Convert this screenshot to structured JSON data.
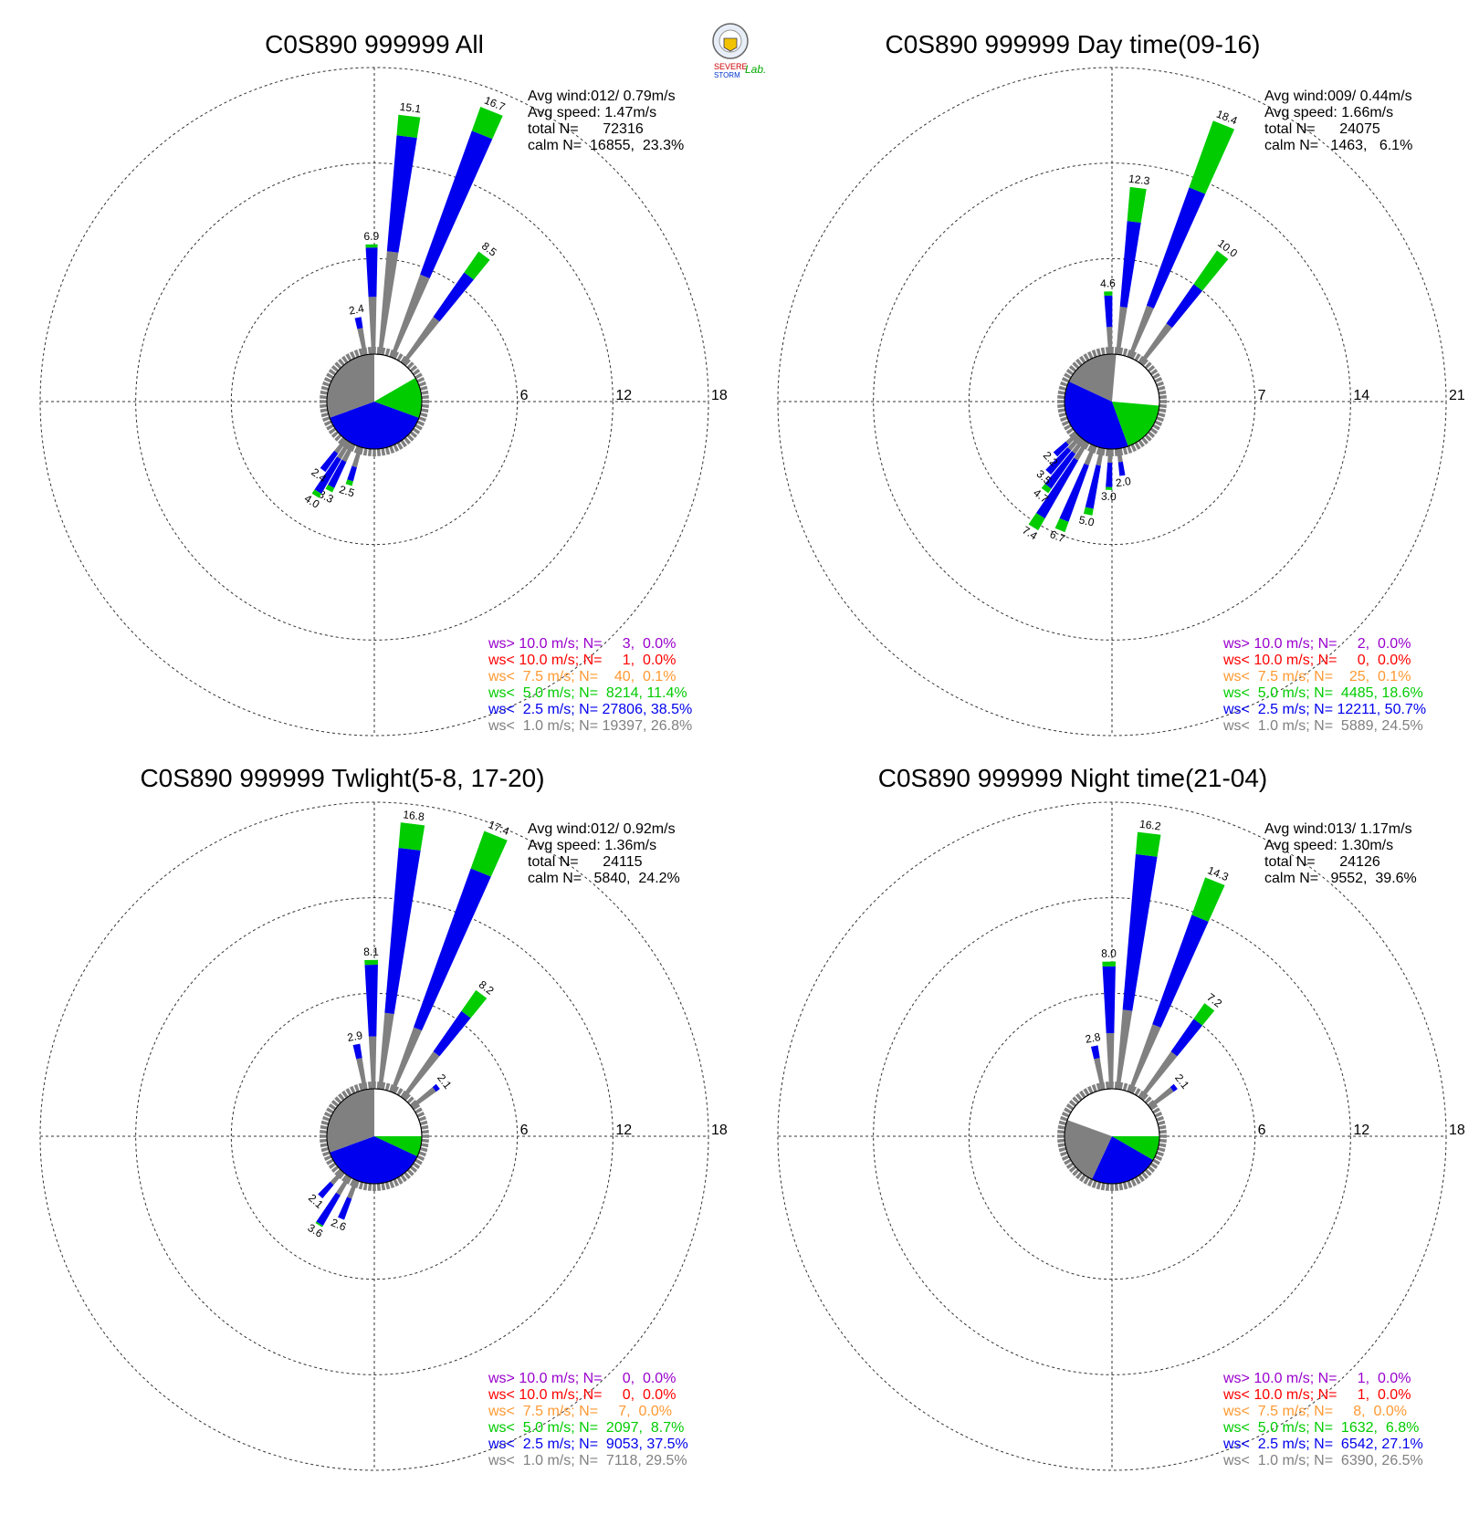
{
  "logo": {
    "text": [
      "SEVERE",
      "STORM",
      "Lab."
    ],
    "colors": [
      "#cc0000",
      "#0033cc",
      "#00aa00"
    ]
  },
  "colors": {
    "gt10": "#9900cc",
    "lt10": "#ff0000",
    "lt7_5": "#ff9933",
    "lt5": "#00cc00",
    "lt2_5": "#0000ee",
    "lt1": "#808080"
  },
  "chart_data": [
    {
      "type": "windrose",
      "title": "C0S890 999999 All",
      "rings": [
        6,
        12,
        18
      ],
      "stats": [
        "Avg wind:012/ 0.79m/s",
        "Avg speed: 1.47m/s",
        "total N=      72316",
        "calm N=  16855,  23.3%"
      ],
      "legend": [
        "ws> 10.0 m/s; N=     3,  0.0%",
        "ws< 10.0 m/s; N=     1,  0.0%",
        "ws<  7.5 m/s; N=    40,  0.1%",
        "ws<  5.0 m/s; N=  8214, 11.4%",
        "ws<  2.5 m/s; N= 27806, 38.5%",
        "ws<  1.0 m/s; N= 19397, 26.8%"
      ],
      "center_pie": [
        {
          "class": "lt2_5",
          "start": 110,
          "end": 250
        },
        {
          "class": "lt5",
          "start": 60,
          "end": 110
        },
        {
          "class": "lt1",
          "start": 250,
          "end": 360
        }
      ],
      "petals": [
        {
          "dir": 7,
          "value": 15.1,
          "green": 1.3,
          "grey": 6.5,
          "label": true
        },
        {
          "dir": 22,
          "value": 16.7,
          "green": 1.6,
          "grey": 5.5,
          "label": true
        },
        {
          "dir": -1,
          "value": 6.9,
          "green": 0.2,
          "grey": 3.6,
          "label": true
        },
        {
          "dir": 37,
          "value": 8.5,
          "green": 1.6,
          "grey": 3.5,
          "label": true
        },
        {
          "dir": -11,
          "value": 2.4,
          "green": 0,
          "grey": 1.7,
          "label": true
        },
        {
          "dir": 197,
          "value": 2.5,
          "green": 0.3,
          "grey": 1.3,
          "label": true
        },
        {
          "dir": 207,
          "value": 3.3,
          "green": 0.3,
          "grey": 1.2,
          "label": true
        },
        {
          "dir": 212,
          "value": 4.0,
          "green": 0.3,
          "grey": 1.2,
          "label": true
        },
        {
          "dir": 217,
          "value": 2.4,
          "green": 0,
          "grey": 1.0,
          "label": true
        }
      ]
    },
    {
      "type": "windrose",
      "title": "C0S890 999999 Day time(09-16)",
      "rings": [
        7,
        14,
        21
      ],
      "stats": [
        "Avg wind:009/ 0.44m/s",
        "Avg speed: 1.66m/s",
        "total N=      24075",
        "calm N=   1463,   6.1%"
      ],
      "legend": [
        "ws> 10.0 m/s; N=     2,  0.0%",
        "ws< 10.0 m/s; N=     0,  0.0%",
        "ws<  7.5 m/s; N=    25,  0.1%",
        "ws<  5.0 m/s; N=  4485, 18.6%",
        "ws<  2.5 m/s; N= 12211, 50.7%",
        "ws<  1.0 m/s; N=  5889, 24.5%"
      ],
      "center_pie": [
        {
          "class": "lt2_5",
          "start": 160,
          "end": 295
        },
        {
          "class": "lt5",
          "start": 95,
          "end": 160
        },
        {
          "class": "lt1",
          "start": 295,
          "end": 365
        }
      ],
      "petals": [
        {
          "dir": 7,
          "value": 12.3,
          "green": 2.5,
          "grey": 3.5,
          "label": true
        },
        {
          "dir": 22,
          "value": 18.4,
          "green": 5.2,
          "grey": 4.0,
          "label": true
        },
        {
          "dir": -2,
          "value": 4.6,
          "green": 0.3,
          "grey": 2.0,
          "label": true
        },
        {
          "dir": 37,
          "value": 10.0,
          "green": 3.0,
          "grey": 3.5,
          "label": true
        },
        {
          "dir": 172,
          "value": 2.0,
          "green": 0,
          "grey": 1.0,
          "label": true
        },
        {
          "dir": 182,
          "value": 3.0,
          "green": 0.2,
          "grey": 1.0,
          "label": true
        },
        {
          "dir": 192,
          "value": 5.0,
          "green": 0.5,
          "grey": 1.3,
          "label": true
        },
        {
          "dir": 202,
          "value": 6.7,
          "green": 0.8,
          "grey": 1.5,
          "label": true
        },
        {
          "dir": 212,
          "value": 7.4,
          "green": 1.0,
          "grey": 1.5,
          "label": true
        },
        {
          "dir": 217,
          "value": 4.7,
          "green": 0.4,
          "grey": 1.2,
          "label": true
        },
        {
          "dir": 222,
          "value": 3.5,
          "green": 0,
          "grey": 1.2,
          "label": true
        },
        {
          "dir": 227,
          "value": 2.2,
          "green": 0,
          "grey": 1.0,
          "label": true
        }
      ]
    },
    {
      "type": "windrose",
      "title": "C0S890 999999 Twlight(5-8, 17-20)",
      "rings": [
        6,
        12,
        18
      ],
      "stats": [
        "Avg wind:012/ 0.92m/s",
        "Avg speed: 1.36m/s",
        "total N=      24115",
        "calm N=   5840,  24.2%"
      ],
      "legend": [
        "ws> 10.0 m/s; N=     0,  0.0%",
        "ws< 10.0 m/s; N=     0,  0.0%",
        "ws<  7.5 m/s; N=     7,  0.0%",
        "ws<  5.0 m/s; N=  2097,  8.7%",
        "ws<  2.5 m/s; N=  9053, 37.5%",
        "ws<  1.0 m/s; N=  7118, 29.5%"
      ],
      "center_pie": [
        {
          "class": "lt2_5",
          "start": 115,
          "end": 250
        },
        {
          "class": "lt5",
          "start": 90,
          "end": 115
        },
        {
          "class": "lt1",
          "start": 250,
          "end": 360
        }
      ],
      "petals": [
        {
          "dir": 7,
          "value": 16.8,
          "green": 1.6,
          "grey": 4.8,
          "label": true
        },
        {
          "dir": 22,
          "value": 17.4,
          "green": 2.5,
          "grey": 4.3,
          "label": true
        },
        {
          "dir": -1,
          "value": 8.1,
          "green": 0.3,
          "grey": 3.3,
          "label": true
        },
        {
          "dir": 37,
          "value": 8.2,
          "green": 1.6,
          "grey": 3.5,
          "label": true
        },
        {
          "dir": 52,
          "value": 2.1,
          "green": 0,
          "grey": 1.8,
          "label": true
        },
        {
          "dir": -11,
          "value": 2.9,
          "green": 0,
          "grey": 2.0,
          "label": true
        },
        {
          "dir": 202,
          "value": 2.6,
          "green": 0,
          "grey": 1.2,
          "label": true
        },
        {
          "dir": 212,
          "value": 3.6,
          "green": 0.1,
          "grey": 1.3,
          "label": true
        },
        {
          "dir": 222,
          "value": 2.1,
          "green": 0,
          "grey": 1.0,
          "label": true
        }
      ]
    },
    {
      "type": "windrose",
      "title": "C0S890 999999 Night time(21-04)",
      "rings": [
        6,
        12,
        18
      ],
      "stats": [
        "Avg wind:013/ 1.17m/s",
        "Avg speed: 1.30m/s",
        "total N=      24126",
        "calm N=   9552,  39.6%"
      ],
      "legend": [
        "ws> 10.0 m/s; N=     1,  0.0%",
        "ws< 10.0 m/s; N=     1,  0.0%",
        "ws<  7.5 m/s; N=     8,  0.0%",
        "ws<  5.0 m/s; N=  1632,  6.8%",
        "ws<  2.5 m/s; N=  6542, 27.1%",
        "ws<  1.0 m/s; N=  6390, 26.5%"
      ],
      "center_pie": [
        {
          "class": "lt2_5",
          "start": 120,
          "end": 205
        },
        {
          "class": "lt5",
          "start": 90,
          "end": 120
        },
        {
          "class": "lt1",
          "start": 205,
          "end": 290
        }
      ],
      "petals": [
        {
          "dir": 7,
          "value": 16.2,
          "green": 1.4,
          "grey": 5.0,
          "label": true
        },
        {
          "dir": 22,
          "value": 14.3,
          "green": 2.5,
          "grey": 4.5,
          "label": true
        },
        {
          "dir": -1,
          "value": 8.0,
          "green": 0.3,
          "grey": 3.5,
          "label": true
        },
        {
          "dir": 37,
          "value": 7.2,
          "green": 1.2,
          "grey": 3.5,
          "label": true
        },
        {
          "dir": 52,
          "value": 2.1,
          "green": 0,
          "grey": 1.8,
          "label": true
        },
        {
          "dir": -11,
          "value": 2.8,
          "green": 0,
          "grey": 2.0,
          "label": true
        }
      ]
    }
  ]
}
